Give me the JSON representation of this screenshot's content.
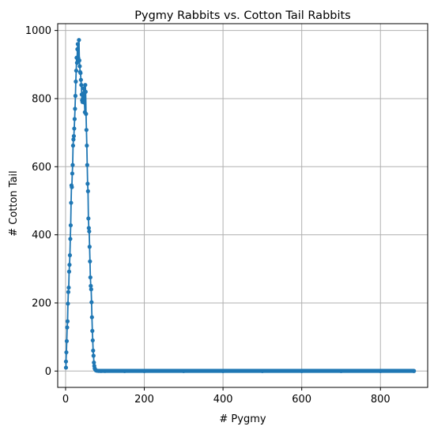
{
  "chart_data": {
    "type": "line",
    "title": "Pygmy Rabbits vs. Cotton Tail Rabbits",
    "xlabel": "# Pygmy",
    "ylabel": "# Cotton Tail",
    "xlim": [
      -20,
      920
    ],
    "ylim": [
      -48,
      1020
    ],
    "xticks": [
      0,
      200,
      400,
      600,
      800
    ],
    "yticks": [
      0,
      200,
      400,
      600,
      800,
      1000
    ],
    "grid": true,
    "color": "#1f77b4",
    "series": [
      {
        "marker": "circle",
        "points": [
          [
            1,
            10
          ],
          [
            1,
            28
          ],
          [
            2,
            55
          ],
          [
            3,
            88
          ],
          [
            4,
            128
          ],
          [
            5,
            146
          ],
          [
            6,
            198
          ],
          [
            7,
            232
          ],
          [
            8,
            245
          ],
          [
            9,
            292
          ],
          [
            10,
            312
          ],
          [
            11,
            340
          ],
          [
            12,
            388
          ],
          [
            13,
            428
          ],
          [
            14,
            494
          ],
          [
            15,
            545
          ],
          [
            16,
            540
          ],
          [
            17,
            580
          ],
          [
            18,
            605
          ],
          [
            19,
            662
          ],
          [
            20,
            680
          ],
          [
            21,
            690
          ],
          [
            22,
            712
          ],
          [
            23,
            740
          ],
          [
            24,
            770
          ],
          [
            25,
            808
          ],
          [
            26,
            850
          ],
          [
            27,
            882
          ],
          [
            28,
            920
          ],
          [
            29,
            905
          ],
          [
            30,
            945
          ],
          [
            31,
            960
          ],
          [
            32,
            920
          ],
          [
            33,
            915
          ],
          [
            34,
            972
          ],
          [
            35,
            912
          ],
          [
            36,
            895
          ],
          [
            37,
            878
          ],
          [
            38,
            875
          ],
          [
            39,
            855
          ],
          [
            40,
            840
          ],
          [
            41,
            812
          ],
          [
            42,
            795
          ],
          [
            43,
            790
          ],
          [
            44,
            800
          ],
          [
            45,
            815
          ],
          [
            46,
            830
          ],
          [
            47,
            795
          ],
          [
            48,
            788
          ],
          [
            49,
            760
          ],
          [
            50,
            840
          ],
          [
            51,
            820
          ],
          [
            52,
            755
          ],
          [
            53,
            708
          ],
          [
            54,
            662
          ],
          [
            55,
            605
          ],
          [
            56,
            550
          ],
          [
            57,
            528
          ],
          [
            58,
            448
          ],
          [
            59,
            420
          ],
          [
            60,
            410
          ],
          [
            61,
            365
          ],
          [
            62,
            322
          ],
          [
            63,
            275
          ],
          [
            64,
            250
          ],
          [
            65,
            240
          ],
          [
            66,
            202
          ],
          [
            67,
            158
          ],
          [
            68,
            118
          ],
          [
            69,
            90
          ],
          [
            70,
            60
          ],
          [
            71,
            45
          ],
          [
            72,
            25
          ],
          [
            73,
            15
          ],
          [
            74,
            8
          ],
          [
            75,
            5
          ],
          [
            77,
            2
          ],
          [
            80,
            1
          ],
          [
            84,
            0.5
          ],
          [
            90,
            0.3
          ],
          [
            100,
            0.2
          ],
          [
            150,
            0.1
          ],
          [
            200,
            0.1
          ],
          [
            300,
            0.1
          ],
          [
            400,
            0.1
          ],
          [
            500,
            0.1
          ],
          [
            600,
            0.1
          ],
          [
            700,
            0.1
          ],
          [
            800,
            0.1
          ],
          [
            885,
            0.1
          ]
        ]
      }
    ]
  }
}
